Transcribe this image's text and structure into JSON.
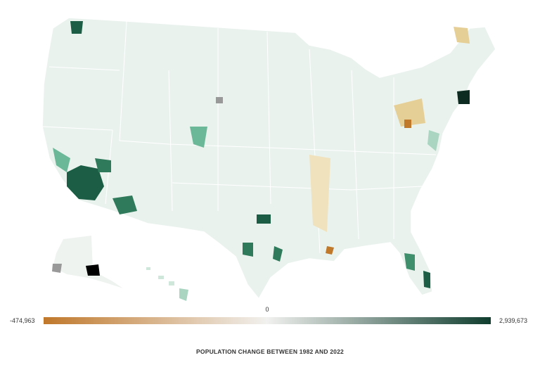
{
  "legend": {
    "min": {
      "value": -474963,
      "label": "-474,963"
    },
    "mid": 0,
    "max": {
      "value": 2939673,
      "label": "2,939,673"
    }
  },
  "caption": "POPULATION CHANGE BETWEEN 1982 AND 2022"
}
